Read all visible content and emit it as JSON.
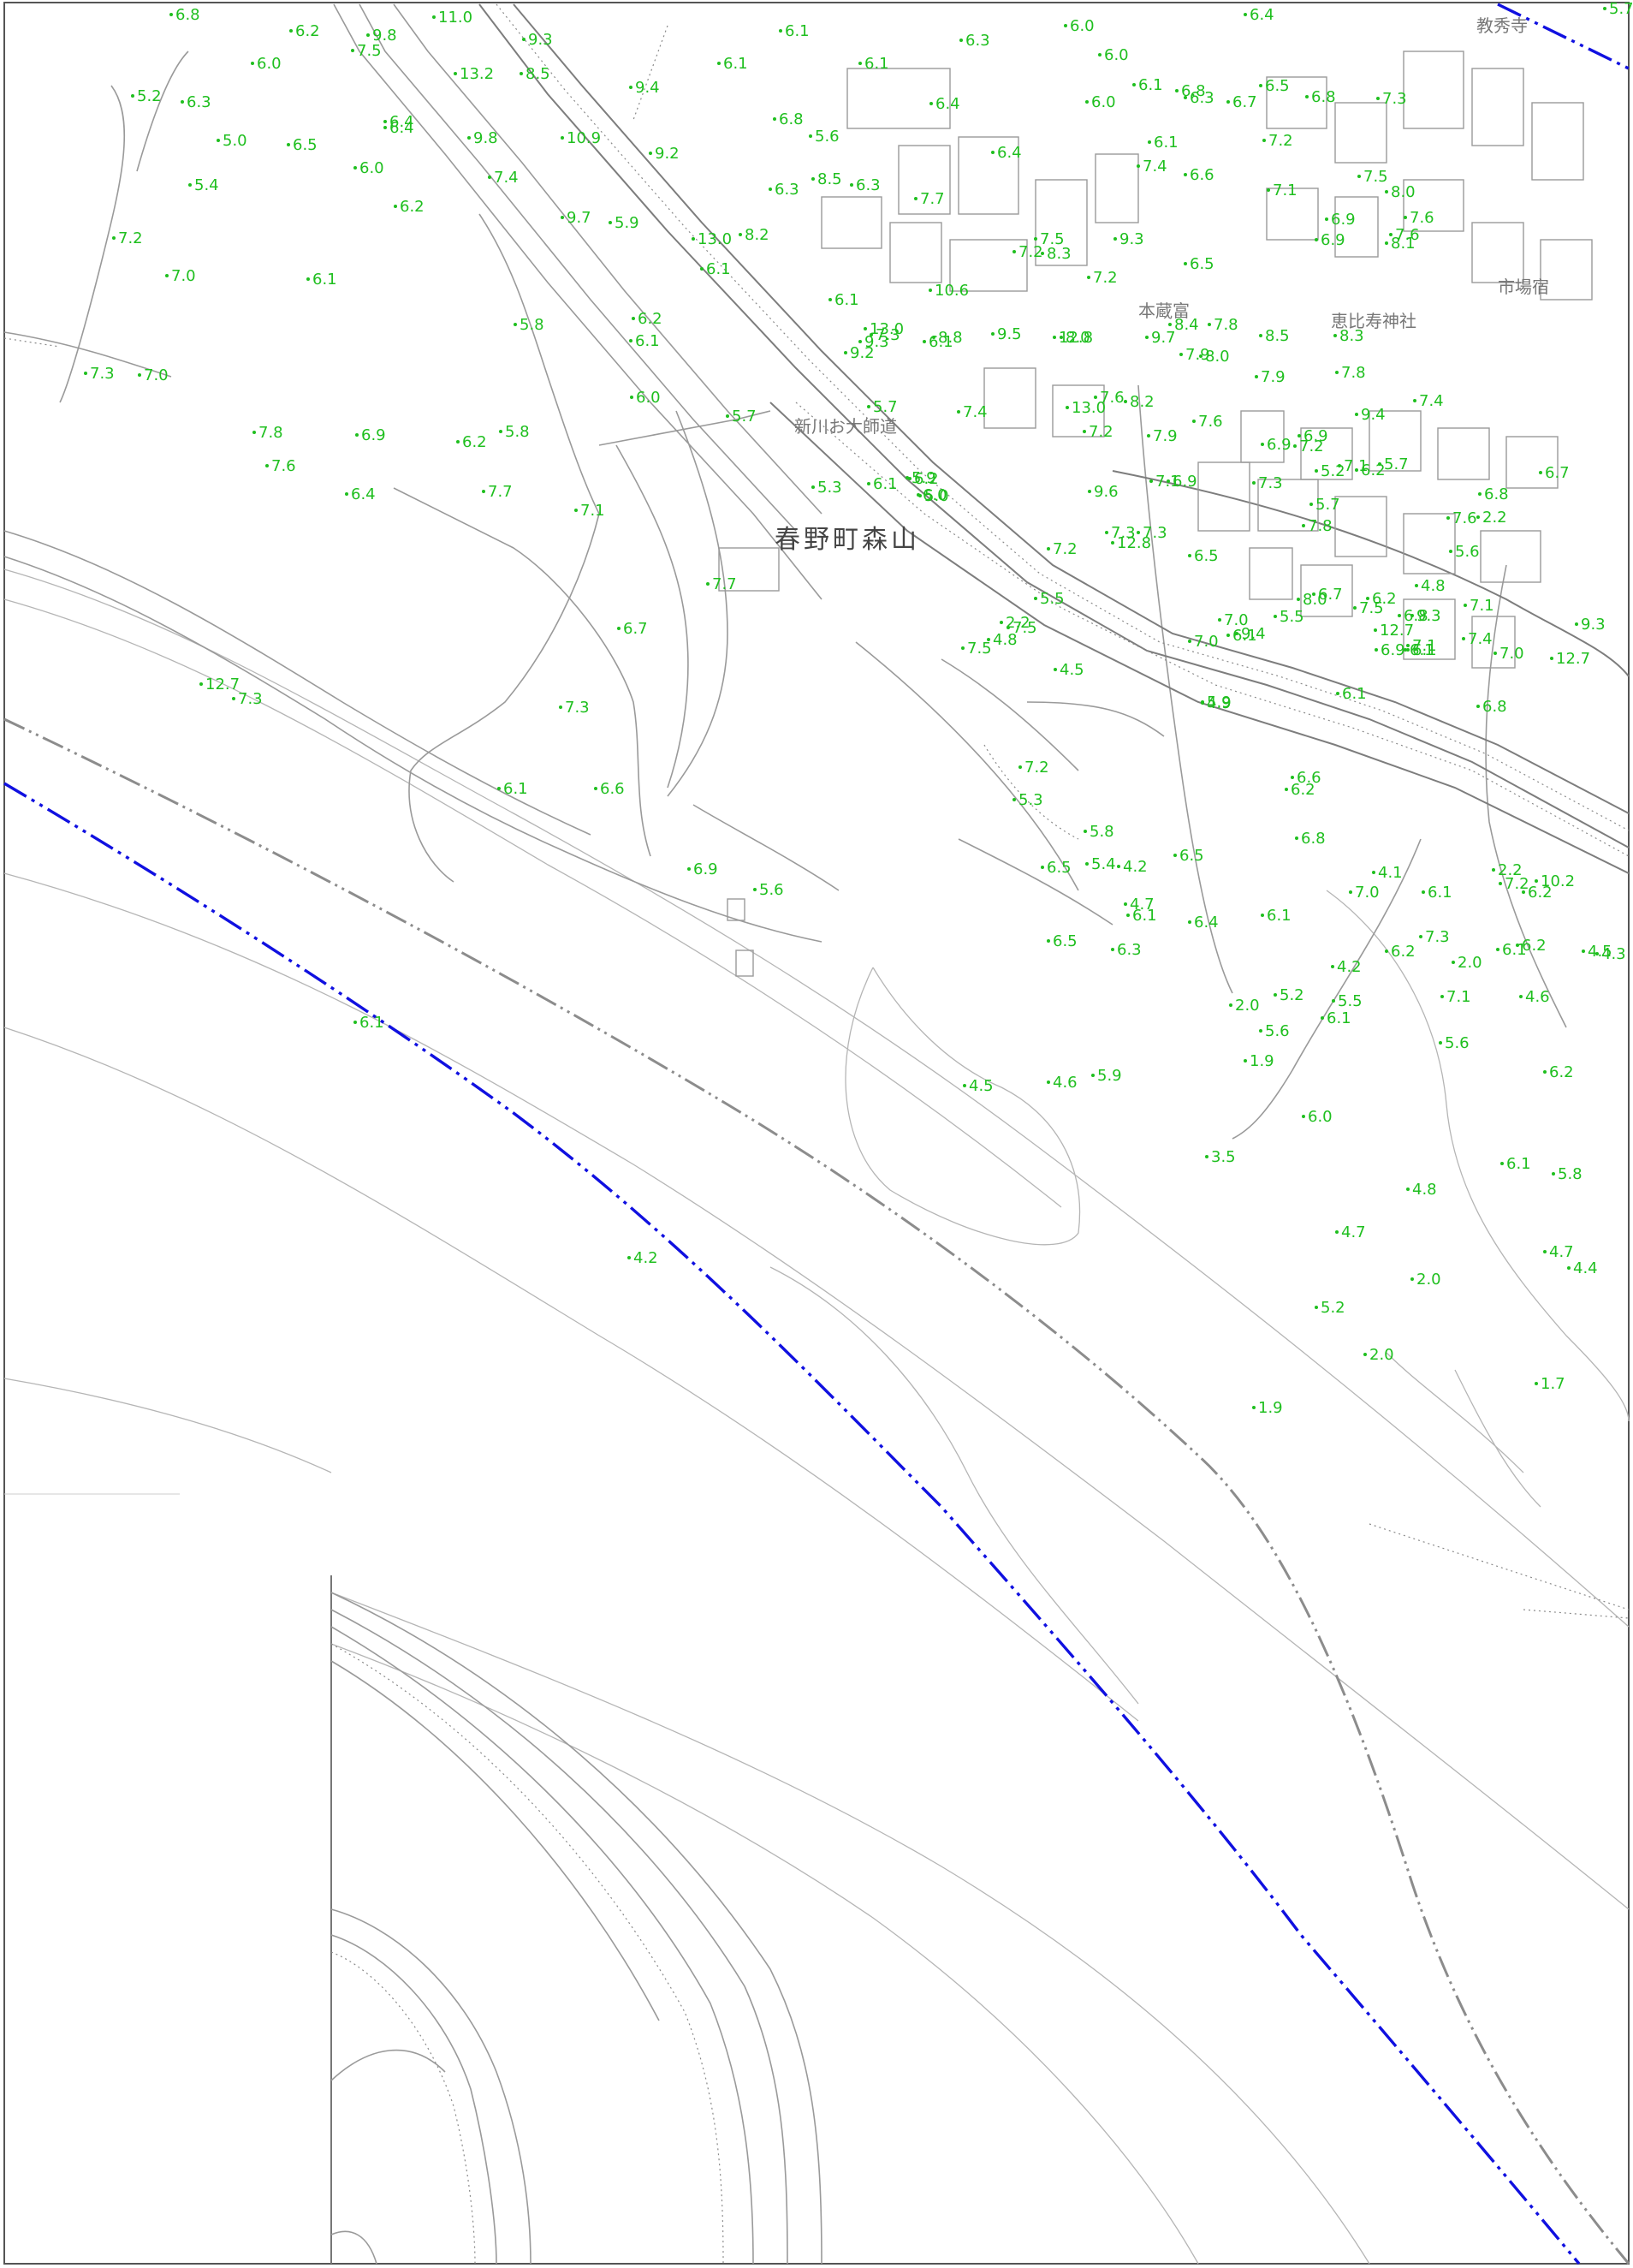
{
  "map": {
    "district_label": "春野町森山",
    "place_labels": [
      {
        "id": "kyoshuji",
        "text": "教秀寺"
      },
      {
        "id": "shinkawa",
        "text": "新川お大師道"
      },
      {
        "id": "ebisu",
        "text": "恵比寿神社"
      },
      {
        "id": "ichibagawa",
        "text": "市場宿"
      },
      {
        "id": "honsakugura",
        "text": "本蔵富"
      }
    ],
    "colors": {
      "elevation": "#1fbf1f",
      "admin_boundary": "#1010e0",
      "secondary_boundary": "#8c8c8c",
      "lines": "#9a9a9a"
    },
    "spot_heights": [
      "6.8",
      "6.2",
      "9.8",
      "11.0",
      "9.3",
      "6.1",
      "6.0",
      "6.3",
      "6.4",
      "5.7",
      "7.5",
      "6.0",
      "13.2",
      "8.5",
      "9.4",
      "6.1",
      "6.1",
      "6.0",
      "6.1",
      "6.3",
      "6.5",
      "5.2",
      "6.3",
      "6.4",
      "9.8",
      "10.9",
      "6.8",
      "5.6",
      "6.4",
      "6.0",
      "6.8",
      "6.7",
      "5.0",
      "6.5",
      "6.4",
      "6.0",
      "9.2",
      "6.4",
      "7.3",
      "6.1",
      "7.2",
      "6.3",
      "6.8",
      "5.4",
      "7.4",
      "9.7",
      "6.3",
      "8.5",
      "7.7",
      "7.4",
      "6.6",
      "7.1",
      "7.5",
      "7.2",
      "6.2",
      "5.9",
      "13.0",
      "8.2",
      "9.3",
      "8.0",
      "7.6",
      "7.5",
      "7.2",
      "6.9",
      "7.0",
      "6.1",
      "5.8",
      "6.1",
      "10.6",
      "7.2",
      "8.3",
      "8.1",
      "7.6",
      "6.9",
      "6.5",
      "6.2",
      "6.1",
      "7.3",
      "13.0",
      "9.3",
      "9.2",
      "8.8",
      "8.0",
      "7.8",
      "8.5",
      "8.3",
      "7.3",
      "7.0",
      "6.0",
      "6.1",
      "6.1",
      "9.5",
      "12.8",
      "9.7",
      "8.0",
      "8.4",
      "7.9",
      "7.8",
      "7.8",
      "6.9",
      "5.8",
      "5.7",
      "5.7",
      "7.4",
      "7.9",
      "8.2",
      "7.9",
      "7.1",
      "7.6",
      "6.2",
      "7.1",
      "6.1",
      "6.2",
      "7.2",
      "13.0",
      "9.6",
      "7.6",
      "7.6",
      "6.9",
      "6.4",
      "6.0",
      "7.3",
      "5.7",
      "6.2",
      "5.2",
      "6.9",
      "5.9",
      "7.2",
      "12.8",
      "7.3",
      "7.7",
      "7.2",
      "5.7",
      "5.3",
      "5.0",
      "9.4",
      "7.1",
      "6.9",
      "7.4",
      "6.8",
      "6.7",
      "7.6",
      "7.3",
      "6.5",
      "7.8",
      "5.6",
      "4.8",
      "6.2",
      "12.7",
      "9.3",
      "7.1",
      "7.4",
      "6.8",
      "6.9",
      "7.7",
      "6.7",
      "5.5",
      "6.7",
      "7.5",
      "9.4",
      "7.1",
      "10.2",
      "7.5",
      "8.0",
      "2.2",
      "2.2",
      "7.0",
      "4.8",
      "6.1",
      "6.1",
      "6.1",
      "7.0",
      "9.3",
      "12.7",
      "7.3",
      "7.3",
      "7.5",
      "7.0",
      "5.5",
      "4.5",
      "5.9",
      "6.2",
      "6.8",
      "12.7",
      "6.1",
      "6.6",
      "7.2",
      "4.9",
      "5.3",
      "5.8",
      "6.5",
      "6.6",
      "6.8",
      "2.2",
      "7.0",
      "6.8",
      "6.5",
      "5.4",
      "4.2",
      "4.1",
      "6.1",
      "6.2",
      "6.3",
      "6.9",
      "7.3",
      "7.2",
      "5.6",
      "4.7",
      "6.1",
      "6.4",
      "6.1",
      "6.2",
      "6.1",
      "6.1",
      "6.5",
      "6.3",
      "4.5",
      "4.2",
      "6.2",
      "2.0",
      "7.1",
      "5.5",
      "4.6",
      "4.3",
      "6.2",
      "5.2",
      "2.0",
      "5.6",
      "6.1",
      "4.5",
      "5.9",
      "1.9",
      "5.6",
      "6.1",
      "6.0",
      "4.6",
      "6.1",
      "5.8",
      "4.8",
      "3.5",
      "4.2",
      "4.7",
      "4.7",
      "4.4",
      "2.0",
      "5.2",
      "2.0",
      "1.9",
      "1.7"
    ]
  }
}
